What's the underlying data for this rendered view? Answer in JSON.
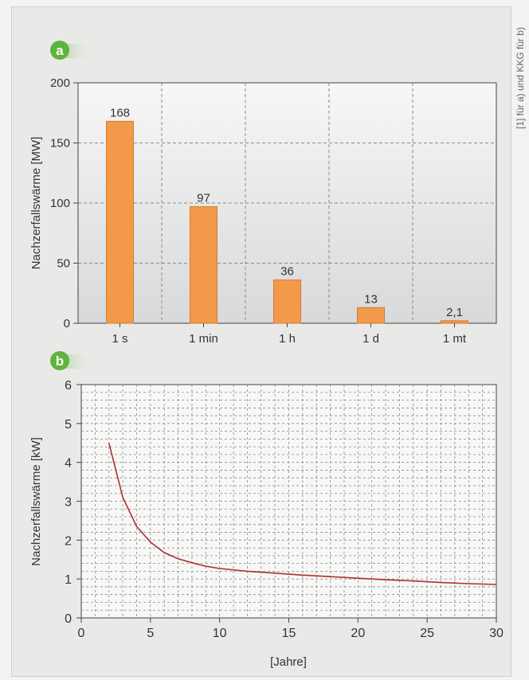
{
  "credit": "[1] für a) und KKG für b)",
  "chart_data": [
    {
      "type": "bar",
      "panel_label": "a",
      "ylabel": "Nachzerfallswärme [MW]",
      "xlabel": "",
      "categories": [
        "1 s",
        "1 min",
        "1 h",
        "1 d",
        "1 mt"
      ],
      "values": [
        168,
        97,
        36,
        13,
        2.1
      ],
      "value_labels": [
        "168",
        "97",
        "36",
        "13",
        "2,1"
      ],
      "ylim": [
        0,
        200
      ],
      "yticks": [
        0,
        50,
        100,
        150,
        200
      ],
      "grid": true,
      "colors": {
        "bar": "#f29a4a",
        "bar_edge": "#d9782e",
        "grid": "#8a8a8a",
        "bg_top": "#f7f7f5",
        "bg_bottom": "#d7d9db"
      }
    },
    {
      "type": "line",
      "panel_label": "b",
      "ylabel": "Nachzerfallswärme [kW]",
      "xlabel": "[Jahre]",
      "xlim": [
        0,
        30
      ],
      "ylim": [
        0,
        6
      ],
      "xticks": [
        0,
        5,
        10,
        15,
        20,
        25,
        30
      ],
      "yticks": [
        0,
        1,
        2,
        3,
        4,
        5,
        6
      ],
      "grid": true,
      "series": [
        {
          "x": [
            2,
            3,
            4,
            5,
            6,
            7,
            8,
            9,
            10,
            12,
            14,
            16,
            18,
            20,
            22,
            24,
            26,
            28,
            30
          ],
          "y": [
            4.5,
            3.1,
            2.35,
            1.95,
            1.68,
            1.52,
            1.42,
            1.33,
            1.27,
            1.2,
            1.15,
            1.1,
            1.06,
            1.02,
            0.98,
            0.95,
            0.91,
            0.88,
            0.86
          ]
        }
      ],
      "colors": {
        "line": "#b03030",
        "grid": "#8a8a8a",
        "bg": "#f7f7f5"
      }
    }
  ],
  "badge_colors": {
    "fill": "#5fb33f",
    "text": "#ffffff"
  }
}
